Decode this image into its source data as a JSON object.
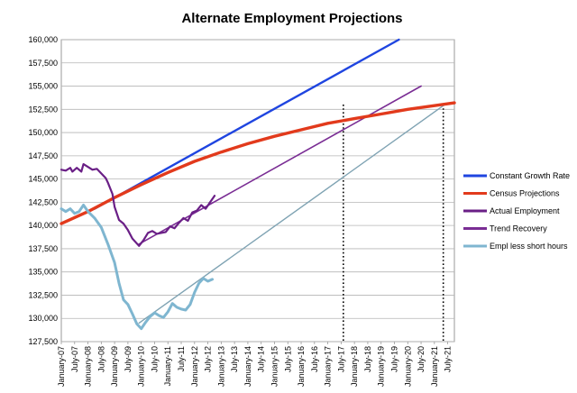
{
  "chart_data": {
    "type": "line",
    "title": "Alternate Employment Projections",
    "xlabel": "",
    "ylabel": "",
    "ylim": [
      127500,
      160000
    ],
    "yticks": [
      "127,500",
      "130,000",
      "132,500",
      "135,000",
      "137,500",
      "140,000",
      "142,500",
      "145,000",
      "147,500",
      "150,000",
      "152,500",
      "155,000",
      "157,500",
      "160,000"
    ],
    "xlim": [
      "2007-01",
      "2021-10"
    ],
    "xticks": [
      "January-07",
      "July-07",
      "January-08",
      "July-08",
      "January-09",
      "July-09",
      "January-10",
      "July-10",
      "January-11",
      "July-11",
      "January-12",
      "July-12",
      "January-13",
      "July-13",
      "January-14",
      "July-14",
      "January-15",
      "July-15",
      "January-16",
      "July-16",
      "January-17",
      "July-17",
      "January-18",
      "July-18",
      "January-19",
      "July-19",
      "January-20",
      "July-20",
      "January-21",
      "July-21"
    ],
    "grid": "horizontal",
    "legend_position": "right",
    "reference_lines": [
      {
        "style": "dotted",
        "x": "2017-08"
      },
      {
        "style": "dotted",
        "x": "2021-05"
      }
    ],
    "series": [
      {
        "name": "Constant Growth Rate",
        "color": "#1f45e0",
        "points": [
          [
            "2008-04",
            141800
          ],
          [
            "2019-09",
            160000
          ]
        ]
      },
      {
        "name": "Census Projections",
        "color": "#e23a1c",
        "points": [
          [
            "2007-01",
            140200
          ],
          [
            "2008-01",
            141500
          ],
          [
            "2009-01",
            143000
          ],
          [
            "2010-01",
            144400
          ],
          [
            "2011-01",
            145700
          ],
          [
            "2012-01",
            146900
          ],
          [
            "2013-01",
            147900
          ],
          [
            "2014-01",
            148800
          ],
          [
            "2015-01",
            149600
          ],
          [
            "2016-01",
            150300
          ],
          [
            "2017-01",
            151000
          ],
          [
            "2018-01",
            151500
          ],
          [
            "2019-01",
            152000
          ],
          [
            "2020-01",
            152500
          ],
          [
            "2021-01",
            152900
          ],
          [
            "2021-10",
            153200
          ]
        ]
      },
      {
        "name": "Actual Employment",
        "color": "#6a1f86",
        "points": [
          [
            "2007-01",
            146000
          ],
          [
            "2007-03",
            145900
          ],
          [
            "2007-05",
            146200
          ],
          [
            "2007-06",
            145800
          ],
          [
            "2007-08",
            146200
          ],
          [
            "2007-10",
            145800
          ],
          [
            "2007-11",
            146600
          ],
          [
            "2008-01",
            146300
          ],
          [
            "2008-03",
            146000
          ],
          [
            "2008-05",
            146100
          ],
          [
            "2008-07",
            145600
          ],
          [
            "2008-09",
            145100
          ],
          [
            "2008-10",
            144600
          ],
          [
            "2008-12",
            143400
          ],
          [
            "2009-01",
            142000
          ],
          [
            "2009-03",
            140600
          ],
          [
            "2009-05",
            140200
          ],
          [
            "2009-07",
            139500
          ],
          [
            "2009-09",
            138600
          ],
          [
            "2009-12",
            137800
          ],
          [
            "2010-02",
            138400
          ],
          [
            "2010-04",
            139200
          ],
          [
            "2010-06",
            139400
          ],
          [
            "2010-08",
            139100
          ],
          [
            "2010-10",
            139200
          ],
          [
            "2010-12",
            139300
          ],
          [
            "2011-02",
            139900
          ],
          [
            "2011-04",
            139700
          ],
          [
            "2011-06",
            140300
          ],
          [
            "2011-08",
            140800
          ],
          [
            "2011-10",
            140500
          ],
          [
            "2011-12",
            141400
          ],
          [
            "2012-02",
            141600
          ],
          [
            "2012-04",
            142200
          ],
          [
            "2012-06",
            141800
          ],
          [
            "2012-08",
            142500
          ],
          [
            "2012-10",
            143200
          ]
        ]
      },
      {
        "name": "Trend Recovery",
        "color": "#7a2d94",
        "points": [
          [
            "2009-12",
            138000
          ],
          [
            "2020-07",
            155000
          ]
        ]
      },
      {
        "name": "Empl less short hours",
        "color": "#7fb6d0",
        "points": [
          [
            "2007-01",
            141800
          ],
          [
            "2007-03",
            141500
          ],
          [
            "2007-05",
            141800
          ],
          [
            "2007-07",
            141300
          ],
          [
            "2007-09",
            141500
          ],
          [
            "2007-11",
            142200
          ],
          [
            "2008-01",
            141500
          ],
          [
            "2008-04",
            140800
          ],
          [
            "2008-07",
            139800
          ],
          [
            "2008-10",
            138000
          ],
          [
            "2009-01",
            136000
          ],
          [
            "2009-03",
            133800
          ],
          [
            "2009-05",
            132000
          ],
          [
            "2009-07",
            131500
          ],
          [
            "2009-09",
            130500
          ],
          [
            "2009-11",
            129400
          ],
          [
            "2010-01",
            128900
          ],
          [
            "2010-03",
            129600
          ],
          [
            "2010-05",
            130200
          ],
          [
            "2010-07",
            130600
          ],
          [
            "2010-09",
            130300
          ],
          [
            "2010-11",
            130100
          ],
          [
            "2011-01",
            130700
          ],
          [
            "2011-03",
            131600
          ],
          [
            "2011-05",
            131200
          ],
          [
            "2011-07",
            131000
          ],
          [
            "2011-09",
            130900
          ],
          [
            "2011-11",
            131500
          ],
          [
            "2012-01",
            132800
          ],
          [
            "2012-03",
            133800
          ],
          [
            "2012-05",
            134300
          ],
          [
            "2012-07",
            134000
          ],
          [
            "2012-09",
            134200
          ]
        ]
      },
      {
        "name": "",
        "color": "#7fa3b3",
        "points": [
          [
            "2009-12",
            129500
          ],
          [
            "2021-05",
            152900
          ]
        ]
      }
    ]
  }
}
